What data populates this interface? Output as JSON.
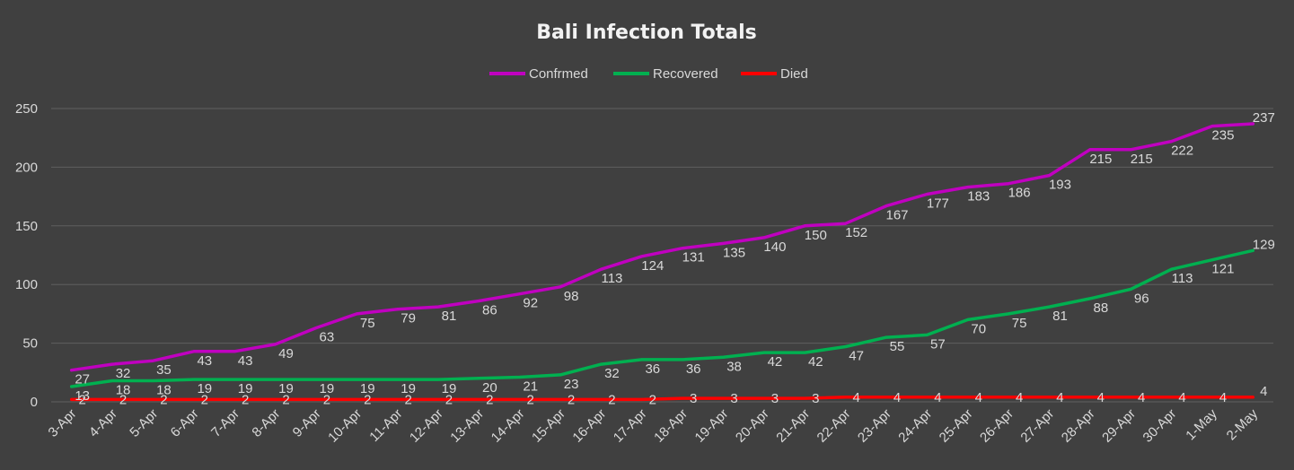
{
  "chart_data": {
    "type": "line",
    "title": "Bali Infection Totals",
    "xlabel": "",
    "ylabel": "",
    "ylim": [
      0,
      250
    ],
    "yticks": [
      0,
      50,
      100,
      150,
      200,
      250
    ],
    "grid": true,
    "legend_position": "top",
    "categories": [
      "3-Apr",
      "4-Apr",
      "5-Apr",
      "6-Apr",
      "7-Apr",
      "8-Apr",
      "9-Apr",
      "10-Apr",
      "11-Apr",
      "12-Apr",
      "13-Apr",
      "14-Apr",
      "15-Apr",
      "16-Apr",
      "17-Apr",
      "18-Apr",
      "19-Apr",
      "20-Apr",
      "21-Apr",
      "22-Apr",
      "23-Apr",
      "24-Apr",
      "25-Apr",
      "26-Apr",
      "27-Apr",
      "28-Apr",
      "29-Apr",
      "30-Apr",
      "1-May",
      "2-May"
    ],
    "series": [
      {
        "name": "Confrmed",
        "color": "#c000c0",
        "values": [
          27,
          32,
          35,
          43,
          43,
          49,
          63,
          75,
          79,
          81,
          86,
          92,
          98,
          113,
          124,
          131,
          135,
          140,
          150,
          152,
          167,
          177,
          183,
          186,
          193,
          215,
          215,
          222,
          235,
          237
        ]
      },
      {
        "name": "Recovered",
        "color": "#00b050",
        "values": [
          13,
          18,
          18,
          19,
          19,
          19,
          19,
          19,
          19,
          19,
          20,
          21,
          23,
          32,
          36,
          36,
          38,
          42,
          42,
          47,
          55,
          57,
          70,
          75,
          81,
          88,
          96,
          113,
          121,
          129
        ]
      },
      {
        "name": "Died",
        "color": "#ff0000",
        "values": [
          2,
          2,
          2,
          2,
          2,
          2,
          2,
          2,
          2,
          2,
          2,
          2,
          2,
          2,
          2,
          3,
          3,
          3,
          3,
          4,
          4,
          4,
          4,
          4,
          4,
          4,
          4,
          4,
          4,
          4
        ]
      }
    ]
  }
}
